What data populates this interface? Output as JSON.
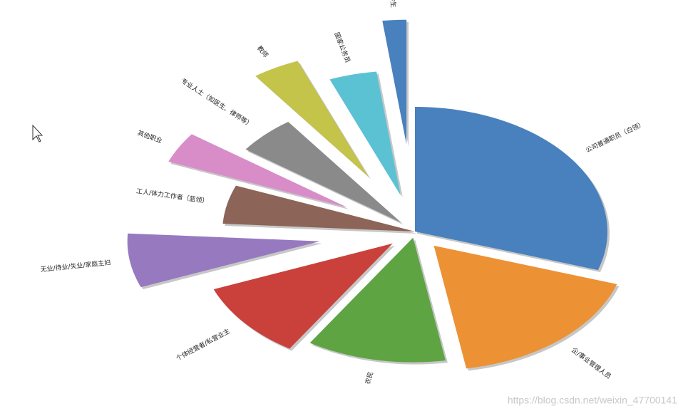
{
  "chart_data": {
    "type": "pie",
    "categories": [
      "公司普通职员（白领）",
      "企/事业管理人员",
      "农民",
      "个体经营者/私营业主",
      "无业/待业/失业/家庭主妇",
      "工人/体力工作者（蓝领）",
      "其他职业",
      "专业人士（如医生、律师等）",
      "教师",
      "国家公务员",
      "学生"
    ],
    "values": [
      30,
      17.3,
      11.7,
      10,
      7,
      5,
      4,
      5,
      4,
      4,
      2
    ],
    "colors": [
      "#4881bd",
      "#ec9235",
      "#5ea443",
      "#c9413a",
      "#9779c0",
      "#8c6458",
      "#d88dc9",
      "#8a8a8a",
      "#c4c34a",
      "#5bc2d4",
      "#4881bd"
    ],
    "explode": [
      0,
      0.15,
      0.05,
      0.15,
      0.5,
      0,
      0.4,
      0.1,
      0.5,
      0.3,
      0.7
    ],
    "startangle": 90,
    "counterclock": false,
    "shadow": true,
    "rotatelabels": true
  },
  "watermark": "https://blog.csdn.net/weixin_47700141"
}
